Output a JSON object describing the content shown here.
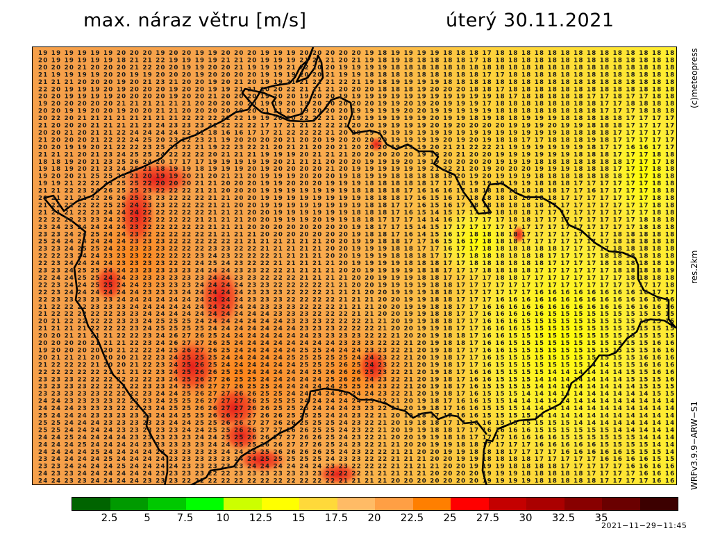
{
  "header": {
    "title": "max. náraz větru [m/s]",
    "date": "úterý 30.11.2021"
  },
  "side_labels": {
    "copyright": "(c)meteopress",
    "resolution": "res.2km",
    "model": "WRFv3.9.9−ARW−S1"
  },
  "timestamp": "2021−11−29−11:45",
  "legend": {
    "unit": "m/s",
    "colors": [
      "#006400",
      "#009a00",
      "#00c800",
      "#00ff00",
      "#ccff00",
      "#ffff00",
      "#ffd93a",
      "#ffbb66",
      "#ff9f44",
      "#ff7f00",
      "#ff0000",
      "#c40000",
      "#aa0000",
      "#880000",
      "#6a0000",
      "#3c0000"
    ],
    "tick_labels": [
      "2.5",
      "5",
      "7.5",
      "10",
      "12.5",
      "15",
      "17.5",
      "20",
      "22.5",
      "25",
      "27.5",
      "30",
      "32.5",
      "35"
    ]
  },
  "map": {
    "country_outline": "Czech Republic",
    "value_grid_rows": [
      "19 19 19 19 19 19 20 20 20 19 20 20 19 19 20 20 20 19 19 19 20 20 20 20 20 19 18 19 19 19 19 18 18 18 17 18 18 18 18 18 18 18 18 18 18 18 18 18 18",
      "20 19 19 19 19 19 18 21 21 22 19 19 19 19 21 21 20 19 19 19 21 21 21 20 21 19 18 19 18 18 18 18 18 17 18 18 18 18 18 18 18 18 18 18 18 18 18 18 18",
      "20 20 20 21 20 20 20 21 22 20 20 19 19 20 20 21 19 19 19 21 22 20 20 19 19 19 19 18 18 18 18 18 18 18 18 18 18 18 18 18 18 18 18 18 18 18 18 18 18",
      "21 19 19 19 19 20 20 19 19 20 20 20 19 20 20 20 20 19 19 19 20 20 21 19 19 18 18 18 18 18 18 18 18 18 17 17 18 18 18 18 18 18 18 18 18 18 18 18 18",
      "21 21 21 20 20 20 19 20 21 23 21 20 20 19 20 21 20 19 19 21 21 21 21 22 21 19 18 19 19 19 19 18 18 18 18 18 18 18 18 18 18 18 18 18 18 18 18 18 18",
      "22 20 19 19 19 20 19 20 20 20 19 20 20 19 19 21 21 20 20 22 21 21 21 20 20 20 18 18 18 19 20 20 20 18 18 17 18 18 18 18 18 18 18 18 18 18 18 18 18",
      "20 20 19 19 19 19 20 20 20 20 19 20 20 21 20 20 20 19 20 20 19 20 20 19 19 19 19 19 19 19 19 19 19 19 19 18 17 18 18 18 18 18 17 17 18 17 17 18 18",
      "19 20 20 20 20 20 21 21 21 21 21 21 20 20 20 20 20 19 19 20 19 20 20 20 20 20 19 19 20 19 20 19 19 19 17 18 18 18 18 18 18 18 18 17 17 18 18 18 18",
      "20 20 19 19 20 20 19 20 20 21 21 20 20 20 20 20 20 21 21 20 19 20 20 20 19 19 19 19 20 20 19 19 19 19 19 18 18 18 18 18 18 18 18 17 17 17 18 18 18",
      "20 22 20 21 21 21 21 21 21 21 21 22 22 22 22 22 19 19 20 20 22 22 21 20 19 19 19 19 19 19 20 19 19 18 19 18 18 19 19 19 18 18 18 18 18 17 17 17 17",
      "21 20 20 20 21 21 21 21 23 24 23 23 23 21 22 22 22 17 17 21 21 22 22 21 20 20 19 19 19 19 20 19 20 20 20 20 19 19 19 20 19 19 18 18 18 17 17 17 17",
      "20 20 21 20 21 21 22 24 24 24 24 22 21 18 16 16 17 17 21 22 22 22 21 20 20 19 19 19 19 19 19 19 19 19 19 19 19 19 19 19 18 18 18 18 17 17 17 17 17",
      "21 20 20 20 21 22 22 24 25 20 23 22 23 21 19 20 20 20 20 21 20 20 19 20 20 20 20 19 19 19 19 20 19 20 19 18 18 17 17 18 18 18 19 18 17 17 17 17 17",
      "20 20 19 19 20 21 22 22 23 25 23 22 21 19 22 23 22 21 20 21 21 20 20 21 20 20 20 19 19 19 20 21 21 22 22 21 19 19 19 19 19 19 18 17 17 16 16 17 17",
      "21 21 21 20 21 23 24 25 25 24 22 22 22 20 21 21 21 19 19 19 20 21 21 21 20 20 20 20 20 19 19 20 21 20 20 19 19 19 19 19 19 18 18 18 17 17 17 18 18",
      "18 18 19 20 21 23 25 26 24 20 17 17 17 19 19 19 19 19 20 21 21 21 20 20 20 19 19 19 20 19 19 20 20 20 20 19 19 19 18 18 18 18 18 18 18 17 17 17 18",
      "19 18 19 20 21 23 24 25 21 18 19 19 18 19 19 19 20 19 20 20 20 20 21 20 19 19 19 19 19 19 21 22 21 20 19 20 20 20 19 19 19 18 18 18 17 17 17 18 18",
      "19 20 20 21 25 25 23 21 20 19 19 20 21 20 21 21 20 19 19 19 20 20 20 19 18 19 19 18 18 18 18 18 20 19 20 19 19 19 18 18 18 18 18 18 18 17 17 18 18",
      "19 19 21 22 22 23 25 25 22 20 20 20 21 21 20 20 20 19 19 20 20 20 19 19 19 18 18 18 18 18 17 17 18 19 19 19 19 19 18 18 18 17 17 17 17 17 17 18 18",
      "21 21 22 23 24 26 25 25 23 22 22 22 21 21 20 20 20 19 19 19 19 19 19 19 18 18 18 18 17 16 16 16 17 18 18 18 18 18 18 18 17 17 16 17 17 17 17 18 18",
      "20 21 21 21 22 26 26 25 23 23 22 22 22 21 21 20 20 19 19 19 19 19 19 19 19 18 18 18 17 16 15 16 17 18 18 18 18 18 18 18 17 17 17 17 17 17 17 18 18",
      "21 22 22 22 22 25 25 24 23 23 22 22 22 21 21 20 20 19 19 19 19 19 19 19 19 18 18 17 17 16 15 16 17 18 18 18 18 18 18 17 17 17 17 17 17 17 17 18 18",
      "21 21 21 22 23 24 24 24 22 22 22 22 22 21 21 21 20 20 19 19 19 19 19 19 18 18 18 17 16 15 14 15 17 17 18 18 18 18 17 17 17 17 17 17 17 17 17 18 18",
      "22 22 22 23 23 24 23 23 22 22 22 22 21 21 21 21 20 20 19 19 19 20 19 19 18 18 17 17 17 14 14 16 17 17 17 17 18 18 17 17 17 17 17 17 17 17 18 18 18",
      "23 24 23 24 24 24 24 23 22 22 22 22 22 21 21 21 20 20 20 20 20 20 20 20 19 18 17 17 15 14 15 17 17 17 17 17 17 17 17 17 17 17 17 17 17 17 18 18 18",
      "23 23 24 24 25 24 24 23 22 22 22 22 22 21 21 21 21 20 20 20 20 20 20 20 19 18 18 17 16 14 15 16 17 18 18 18 18 17 17 17 17 17 17 17 18 18 18 18 18",
      "25 24 24 24 24 24 24 23 23 23 22 22 22 22 22 21 21 21 21 21 21 21 20 20 19 19 18 18 17 17 16 15 16 17 18 18 18 17 17 17 17 17 17 17 18 18 18 18 18",
      "23 23 24 25 25 24 23 23 23 23 22 22 22 23 23 22 22 21 21 21 21 21 20 20 19 19 19 18 18 17 17 16 17 17 18 18 18 18 18 18 17 17 17 17 18 18 18 18 18",
      "22 22 23 24 24 23 23 23 22 22 22 22 23 24 23 22 22 22 21 21 21 21 20 20 19 19 19 18 18 18 17 17 17 18 18 18 18 18 18 17 17 17 17 18 18 18 18 18 18",
      "22 23 24 24 24 24 23 23 23 23 22 22 24 25 24 23 22 22 21 21 21 21 21 20 19 19 19 19 18 18 18 17 17 18 18 18 18 18 18 17 17 17 17 18 18 18 18 18 19",
      "23 23 24 25 25 24 24 23 23 23 23 23 24 24 24 23 23 22 22 21 21 21 21 20 20 19 19 19 19 18 18 17 17 17 18 18 18 18 17 17 17 17 17 17 18 18 18 18 19",
      "22 24 24 25 25 24 24 23 23 23 23 23 23 24 24 23 23 22 22 22 21 21 21 21 20 20 19 19 19 18 18 17 17 17 17 18 18 17 17 17 17 17 17 17 17 18 18 18 18",
      "22 23 24 24 25 25 24 24 23 23 23 23 24 24 24 24 23 23 22 22 22 22 21 21 20 20 19 19 19 19 18 18 17 17 17 17 17 17 17 17 17 17 17 17 17 17 17 17 18",
      "22 23 24 24 24 24 24 24 23 23 23 24 24 24 24 24 23 23 23 22 22 22 21 21 21 20 20 19 19 19 18 18 17 17 17 17 17 17 16 16 16 16 16 16 16 16 16 17 17",
      "22 23 23 23 23 23 24 24 24 24 24 24 24 24 24 24 23 23 23 22 22 22 22 21 21 21 20 20 19 19 18 18 17 17 17 16 16 16 16 16 16 16 16 16 16 16 16 16 16",
      "21 22 22 22 23 23 23 24 24 24 24 24 24 24 24 24 24 23 23 23 22 22 22 21 21 21 20 20 19 19 18 18 17 17 16 16 16 16 16 16 16 16 16 16 16 16 16 16 16",
      "21 22 22 22 22 22 23 23 24 24 24 24 24 24 24 24 24 24 23 23 23 22 22 22 21 21 20 20 19 19 18 18 17 17 16 16 16 16 16 15 15 15 15 15 15 15 15 15 15",
      "20 21 22 22 22 22 23 23 24 25 25 25 24 24 24 24 24 24 24 23 23 23 22 22 22 21 21 20 19 19 18 18 17 17 16 16 16 15 15 15 15 15 15 15 15 15 15 15 15",
      "21 21 21 21 22 22 22 23 24 25 25 25 25 24 24 24 24 24 24 24 23 23 23 22 22 22 21 20 20 19 19 18 17 17 16 16 16 15 15 15 15 15 15 15 15 15 15 15 15",
      "20 20 21 21 21 21 22 22 23 24 26 27 26 25 24 24 24 24 24 24 24 23 23 23 23 22 22 21 20 20 19 18 18 17 16 16 15 15 15 15 15 15 15 15 15 15 15 15 15",
      "20 20 20 20 21 21 21 22 23 24 26 27 27 26 25 24 24 24 24 24 24 24 24 23 23 23 22 22 21 20 19 18 18 17 16 16 15 15 15 15 15 15 15 15 15 15 15 16 16",
      "19 20 20 20 20 20 21 22 22 24 25 26 27 26 25 24 24 24 24 24 25 25 24 24 24 23 23 22 21 20 19 18 17 17 16 16 15 15 15 15 15 15 15 15 15 15 15 16 16",
      "20 21 21 21 20 20 20 21 22 23 24 25 25 25 24 24 24 24 24 25 25 25 25 25 24 24 23 22 21 20 19 18 17 17 16 15 15 15 15 15 15 15 15 15 15 15 16 16 16",
      "21 22 22 22 21 20 20 21 22 23 24 25 26 25 24 24 24 24 24 24 25 25 25 26 25 24 23 22 21 20 19 18 17 17 16 15 15 15 15 15 15 15 14 14 15 15 16 16 16",
      "22 22 22 22 22 21 21 21 22 23 24 25 26 26 25 25 24 24 24 24 24 25 26 26 26 25 23 22 21 20 19 18 17 16 16 15 15 15 15 14 14 14 14 14 14 15 15 16 16",
      "23 23 23 22 22 22 22 22 22 23 24 25 26 27 26 25 25 24 24 24 24 24 25 26 26 24 23 22 21 20 19 18 17 16 16 15 15 15 14 14 14 14 14 14 14 15 15 15 16",
      "23 23 23 23 22 22 22 22 23 23 24 25 26 27 27 26 25 25 24 24 24 24 24 25 25 24 23 22 21 20 19 18 17 16 15 15 15 15 14 14 14 14 14 14 14 14 15 15 15",
      "23 23 23 23 23 22 22 22 23 24 24 25 26 27 27 26 26 25 25 24 24 24 24 24 24 24 23 22 21 20 19 18 17 16 15 15 15 14 14 14 14 14 14 14 14 14 14 15 15",
      "24 24 23 23 23 23 22 22 23 24 25 25 26 27 27 27 26 25 25 25 24 24 24 24 24 23 22 21 20 19 18 17 16 16 15 15 14 14 14 14 14 14 14 14 14 14 14 14 14",
      "24 24 24 23 23 23 22 22 23 24 25 25 26 26 27 27 26 26 25 25 25 24 24 24 23 23 22 21 20 19 18 17 16 16 15 15 15 14 14 14 14 14 14 14 14 14 14 14 14",
      "25 24 24 24 23 23 23 23 23 24 24 25 25 26 26 27 27 26 26 25 25 25 24 24 23 22 21 20 19 18 17 17 16 16 15 15 15 15 14 14 14 14 14 14 14 14 14 14 14",
      "25 25 24 24 24 23 23 23 23 23 24 24 25 25 26 26 27 27 26 26 25 25 25 24 23 22 21 20 19 18 18 17 17 16 16 15 15 15 15 15 15 14 14 14 14 14 14 14 14",
      "25 25 24 24 24 24 23 23 23 23 23 24 24 25 25 26 26 27 27 26 26 25 25 24 23 22 21 20 19 19 18 18 17 17 16 16 16 16 15 15 15 15 15 15 14 14 14 14 14",
      "24 24 25 24 24 24 24 23 23 23 23 23 24 24 25 25 26 26 27 27 26 26 25 24 23 22 21 20 20 19 19 18 18 17 17 17 16 16 16 16 15 15 15 15 15 15 14 14 14",
      "24 24 24 25 24 24 24 24 23 23 23 23 23 24 24 25 25 26 26 27 27 26 25 24 23 22 21 21 20 20 19 19 18 18 17 17 17 17 16 16 16 16 16 15 15 15 15 14 14",
      "24 24 24 24 25 24 24 24 24 23 23 23 23 23 24 24 25 25 26 26 26 26 25 24 23 22 22 21 21 20 20 19 19 18 18 18 17 17 17 17 16 16 16 16 16 15 15 15 14",
      "23 24 24 24 24 25 24 24 24 24 23 23 23 23 23 24 24 25 25 25 25 25 24 23 23 22 22 21 21 21 20 20 19 19 18 18 18 18 17 17 17 17 17 16 16 16 16 15 15",
      "23 23 24 24 24 24 25 24 24 24 24 23 23 23 23 23 24 24 24 24 24 24 23 23 22 22 22 21 21 21 21 20 20 19 19 19 18 18 18 18 17 17 17 17 17 16 16 16 16",
      "24 23 23 24 24 24 24 24 24 23 23 23 23 22 22 23 23 23 23 23 23 23 22 22 22 21 21 21 21 21 20 20 20 20 19 19 19 18 18 18 18 18 17 17 17 17 16 16 16",
      "24 24 23 23 24 24 24 24 23 23 23 22 22 22 22 22 22 22 22 22 22 22 22 21 21 21 21 20 20 20 20 20 20 20 19 19 19 19 18 18 18 18 18 17 17 17 17 16 16"
    ]
  }
}
